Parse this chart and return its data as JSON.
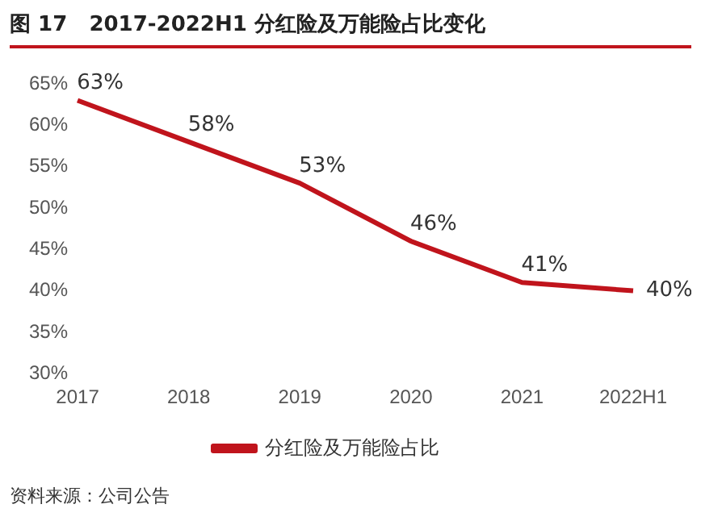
{
  "chart_data": {
    "type": "line",
    "title": "图 17   2017-2022H1 分红险及万能险占比变化",
    "categories": [
      "2017",
      "2018",
      "2019",
      "2020",
      "2021",
      "2022H1"
    ],
    "series": [
      {
        "name": "分红险及万能险占比",
        "color": "#c0141c",
        "values": [
          63,
          58,
          53,
          46,
          41,
          40
        ]
      }
    ],
    "value_labels": [
      "63%",
      "58%",
      "53%",
      "46%",
      "41%",
      "40%"
    ],
    "ylim": [
      30,
      65
    ],
    "yticks": [
      {
        "value": 30,
        "label": "30%"
      },
      {
        "value": 35,
        "label": "35%"
      },
      {
        "value": 40,
        "label": "40%"
      },
      {
        "value": 45,
        "label": "45%"
      },
      {
        "value": 50,
        "label": "50%"
      },
      {
        "value": 55,
        "label": "55%"
      },
      {
        "value": 60,
        "label": "60%"
      },
      {
        "value": 65,
        "label": "65%"
      }
    ],
    "grid": false,
    "legend": "bottom",
    "marker": "none",
    "line_style": "solid",
    "annotations": [
      "资料来源：公司公告"
    ]
  }
}
